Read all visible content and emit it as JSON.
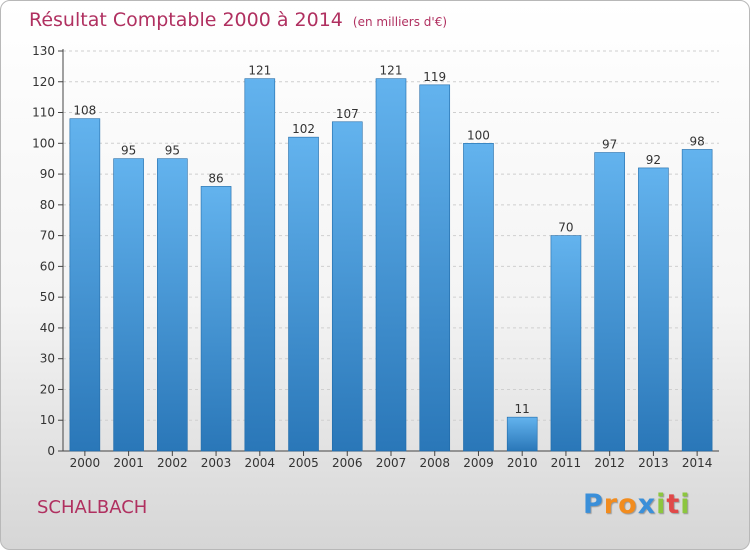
{
  "title": "Résultat Comptable 2000 à 2014",
  "unit": "(en milliers d'€)",
  "town": "SCHALBACH",
  "brand": {
    "letters": [
      "P",
      "r",
      "o",
      "x",
      "i",
      "t",
      "i"
    ],
    "colors": [
      "#3a8fd9",
      "#f28c1e",
      "#f28c1e",
      "#3a8fd9",
      "#8cc63f",
      "#e04848",
      "#8cc63f"
    ]
  },
  "colors": {
    "title": "#b03060",
    "bar_top": "#63b3ee",
    "bar_bottom": "#2a77b8",
    "bar_edge": "#1f6aa8",
    "axis": "#444444",
    "grid": "#cfcfcf"
  },
  "chart_data": {
    "type": "bar",
    "title": "Résultat Comptable 2000 à 2014",
    "ylabel": "(en milliers d'€)",
    "xlabel": "",
    "categories": [
      "2000",
      "2001",
      "2002",
      "2003",
      "2004",
      "2005",
      "2006",
      "2007",
      "2008",
      "2009",
      "2010",
      "2011",
      "2012",
      "2013",
      "2014"
    ],
    "values": [
      108,
      95,
      95,
      86,
      121,
      102,
      107,
      121,
      119,
      100,
      11,
      70,
      97,
      92,
      98
    ],
    "ylim": [
      0,
      130
    ],
    "yticks": [
      0,
      10,
      20,
      30,
      40,
      50,
      60,
      70,
      80,
      90,
      100,
      110,
      120,
      130
    ],
    "grid": true
  }
}
